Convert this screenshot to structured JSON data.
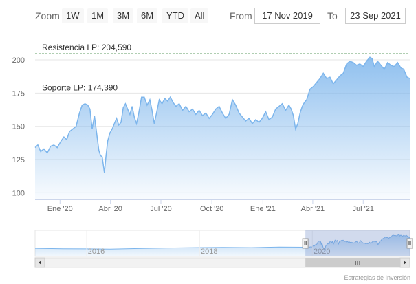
{
  "toolbar": {
    "zoom_label": "Zoom",
    "buttons": [
      "1W",
      "1M",
      "3M",
      "6M",
      "YTD",
      "All"
    ],
    "from_label": "From",
    "from_value": "17 Nov 2019",
    "to_label": "To",
    "to_value": "23 Sep 2021"
  },
  "credit": "Estrategias de Inversión",
  "colors": {
    "series": "#7cb5ec",
    "resistance_line": "#2e7d32",
    "support_line": "#b71c1c"
  },
  "chart_data": {
    "type": "area",
    "xlabel": "",
    "ylabel": "",
    "x_range": [
      "2019-11-17",
      "2021-09-23"
    ],
    "ylim": [
      95,
      214
    ],
    "yticks": [
      100,
      125,
      150,
      175,
      200
    ],
    "xticks": [
      {
        "date": "2020-01-01",
        "label": "Ene '20"
      },
      {
        "date": "2020-04-01",
        "label": "Abr '20"
      },
      {
        "date": "2020-07-01",
        "label": "Jul '20"
      },
      {
        "date": "2020-10-01",
        "label": "Oct '20"
      },
      {
        "date": "2021-01-01",
        "label": "Ene '21"
      },
      {
        "date": "2021-04-01",
        "label": "Abr '21"
      },
      {
        "date": "2021-07-01",
        "label": "Jul '21"
      }
    ],
    "grid": true,
    "plot_lines": [
      {
        "label": "Resistencia LP: 204,590",
        "value": 204.59,
        "style": "dashed",
        "color": "#2e7d32"
      },
      {
        "label": "Soporte LP: 174,390",
        "value": 174.39,
        "style": "dashed",
        "color": "#b71c1c"
      }
    ],
    "series": [
      {
        "points": [
          [
            "2019-11-17",
            134
          ],
          [
            "2019-11-22",
            136
          ],
          [
            "2019-11-27",
            131
          ],
          [
            "2019-12-03",
            133
          ],
          [
            "2019-12-09",
            130
          ],
          [
            "2019-12-15",
            135
          ],
          [
            "2019-12-21",
            136
          ],
          [
            "2019-12-27",
            134
          ],
          [
            "2020-01-03",
            139
          ],
          [
            "2020-01-08",
            142
          ],
          [
            "2020-01-13",
            140
          ],
          [
            "2020-01-18",
            146
          ],
          [
            "2020-01-24",
            148
          ],
          [
            "2020-01-30",
            150
          ],
          [
            "2020-02-05",
            160
          ],
          [
            "2020-02-10",
            166
          ],
          [
            "2020-02-15",
            167
          ],
          [
            "2020-02-20",
            166
          ],
          [
            "2020-02-24",
            163
          ],
          [
            "2020-02-28",
            148
          ],
          [
            "2020-03-03",
            158
          ],
          [
            "2020-03-07",
            145
          ],
          [
            "2020-03-11",
            132
          ],
          [
            "2020-03-14",
            128
          ],
          [
            "2020-03-17",
            127
          ],
          [
            "2020-03-21",
            115
          ],
          [
            "2020-03-24",
            128
          ],
          [
            "2020-03-27",
            139
          ],
          [
            "2020-03-31",
            145
          ],
          [
            "2020-04-04",
            148
          ],
          [
            "2020-04-08",
            152
          ],
          [
            "2020-04-12",
            156
          ],
          [
            "2020-04-16",
            151
          ],
          [
            "2020-04-20",
            153
          ],
          [
            "2020-04-24",
            164
          ],
          [
            "2020-04-28",
            167
          ],
          [
            "2020-05-02",
            163
          ],
          [
            "2020-05-06",
            159
          ],
          [
            "2020-05-10",
            165
          ],
          [
            "2020-05-14",
            157
          ],
          [
            "2020-05-18",
            152
          ],
          [
            "2020-05-22",
            160
          ],
          [
            "2020-05-27",
            172
          ],
          [
            "2020-06-01",
            172
          ],
          [
            "2020-06-06",
            166
          ],
          [
            "2020-06-11",
            170
          ],
          [
            "2020-06-15",
            162
          ],
          [
            "2020-06-19",
            152
          ],
          [
            "2020-06-23",
            160
          ],
          [
            "2020-06-28",
            170
          ],
          [
            "2020-07-03",
            167
          ],
          [
            "2020-07-08",
            171
          ],
          [
            "2020-07-13",
            169
          ],
          [
            "2020-07-18",
            172
          ],
          [
            "2020-07-23",
            168
          ],
          [
            "2020-07-28",
            165
          ],
          [
            "2020-08-03",
            167
          ],
          [
            "2020-08-09",
            162
          ],
          [
            "2020-08-15",
            165
          ],
          [
            "2020-08-21",
            161
          ],
          [
            "2020-08-27",
            163
          ],
          [
            "2020-09-02",
            159
          ],
          [
            "2020-09-08",
            162
          ],
          [
            "2020-09-14",
            158
          ],
          [
            "2020-09-20",
            160
          ],
          [
            "2020-09-26",
            156
          ],
          [
            "2020-10-02",
            159
          ],
          [
            "2020-10-08",
            163
          ],
          [
            "2020-10-14",
            165
          ],
          [
            "2020-10-20",
            160
          ],
          [
            "2020-10-26",
            156
          ],
          [
            "2020-11-01",
            159
          ],
          [
            "2020-11-07",
            170
          ],
          [
            "2020-11-13",
            166
          ],
          [
            "2020-11-19",
            160
          ],
          [
            "2020-11-25",
            157
          ],
          [
            "2020-12-01",
            154
          ],
          [
            "2020-12-07",
            156
          ],
          [
            "2020-12-13",
            152
          ],
          [
            "2020-12-19",
            155
          ],
          [
            "2020-12-25",
            153
          ],
          [
            "2020-12-31",
            156
          ],
          [
            "2021-01-06",
            161
          ],
          [
            "2021-01-12",
            155
          ],
          [
            "2021-01-18",
            157
          ],
          [
            "2021-01-24",
            163
          ],
          [
            "2021-01-30",
            165
          ],
          [
            "2021-02-05",
            167
          ],
          [
            "2021-02-11",
            162
          ],
          [
            "2021-02-17",
            166
          ],
          [
            "2021-02-21",
            163
          ],
          [
            "2021-02-25",
            158
          ],
          [
            "2021-03-01",
            148
          ],
          [
            "2021-03-05",
            152
          ],
          [
            "2021-03-09",
            160
          ],
          [
            "2021-03-13",
            165
          ],
          [
            "2021-03-17",
            168
          ],
          [
            "2021-03-21",
            170
          ],
          [
            "2021-03-27",
            178
          ],
          [
            "2021-04-02",
            180
          ],
          [
            "2021-04-08",
            183
          ],
          [
            "2021-04-14",
            186
          ],
          [
            "2021-04-20",
            190
          ],
          [
            "2021-04-26",
            186
          ],
          [
            "2021-05-02",
            187
          ],
          [
            "2021-05-08",
            182
          ],
          [
            "2021-05-14",
            185
          ],
          [
            "2021-05-20",
            188
          ],
          [
            "2021-05-26",
            190
          ],
          [
            "2021-06-01",
            197
          ],
          [
            "2021-06-07",
            199
          ],
          [
            "2021-06-13",
            198
          ],
          [
            "2021-06-19",
            196
          ],
          [
            "2021-06-25",
            197
          ],
          [
            "2021-07-01",
            195
          ],
          [
            "2021-07-07",
            199
          ],
          [
            "2021-07-13",
            202
          ],
          [
            "2021-07-17",
            201
          ],
          [
            "2021-07-21",
            195
          ],
          [
            "2021-07-27",
            199
          ],
          [
            "2021-08-02",
            196
          ],
          [
            "2021-08-08",
            193
          ],
          [
            "2021-08-14",
            198
          ],
          [
            "2021-08-20",
            196
          ],
          [
            "2021-08-26",
            195
          ],
          [
            "2021-09-01",
            198
          ],
          [
            "2021-09-07",
            194
          ],
          [
            "2021-09-12",
            193
          ],
          [
            "2021-09-18",
            187
          ],
          [
            "2021-09-23",
            186
          ]
        ]
      }
    ],
    "navigator": {
      "x_labels": [
        "2016",
        "2018",
        "2020"
      ]
    }
  }
}
